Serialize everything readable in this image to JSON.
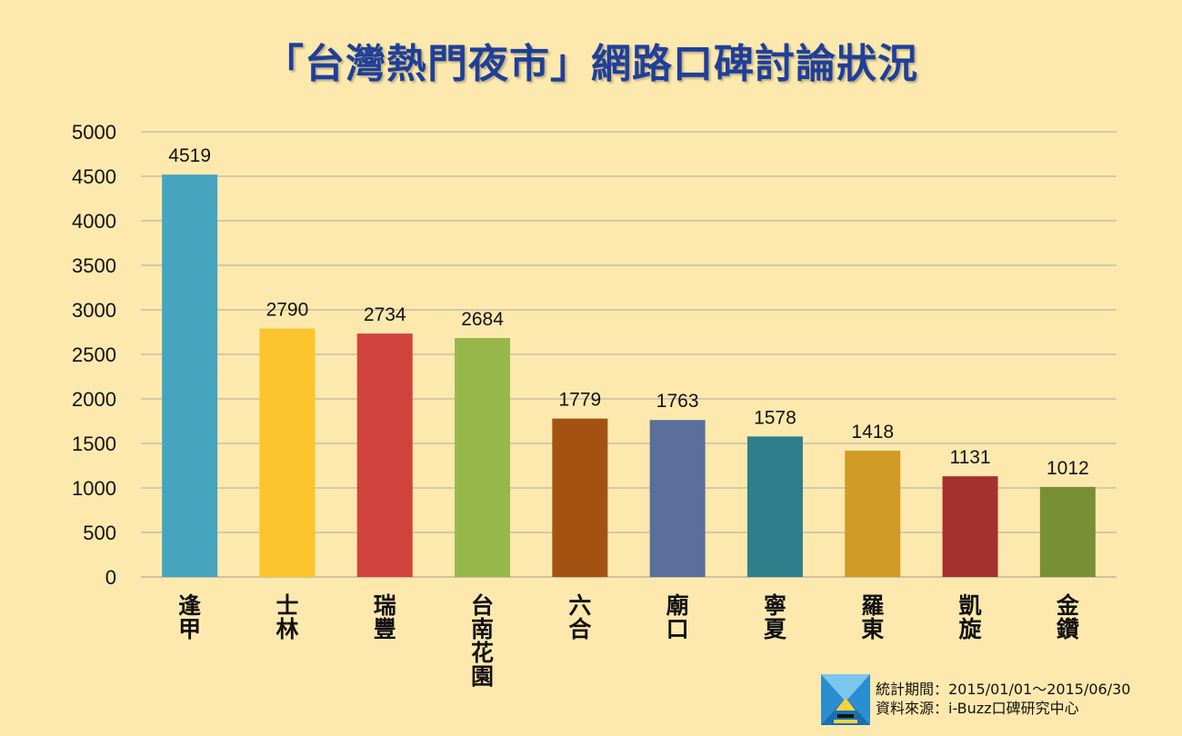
{
  "title": "「台灣熱門夜市」網路口碑討論狀況",
  "footer": {
    "period": "統計期間：2015/01/01～2015/06/30",
    "source": "資料來源：i-Buzz口碑研究中心"
  },
  "chart_data": {
    "type": "bar",
    "title": "「台灣熱門夜市」網路口碑討論狀況",
    "xlabel": "",
    "ylabel": "",
    "categories": [
      "逢甲",
      "士林",
      "瑞豐",
      "台南花園",
      "六合",
      "廟口",
      "寧夏",
      "羅東",
      "凱旋",
      "金鑽"
    ],
    "values": [
      4519,
      2790,
      2734,
      2684,
      1779,
      1763,
      1578,
      1418,
      1131,
      1012
    ],
    "colors": [
      "#46a4bf",
      "#fcc42d",
      "#d2423d",
      "#97b74b",
      "#a35212",
      "#5a6f9c",
      "#2f7e8b",
      "#d09b24",
      "#a5302f",
      "#788f36"
    ],
    "ylim": [
      0,
      5000
    ],
    "yticks": [
      0,
      500,
      1000,
      1500,
      2000,
      2500,
      3000,
      3500,
      4000,
      4500,
      5000
    ],
    "grid": true,
    "data_labels": true,
    "legend": "none"
  }
}
